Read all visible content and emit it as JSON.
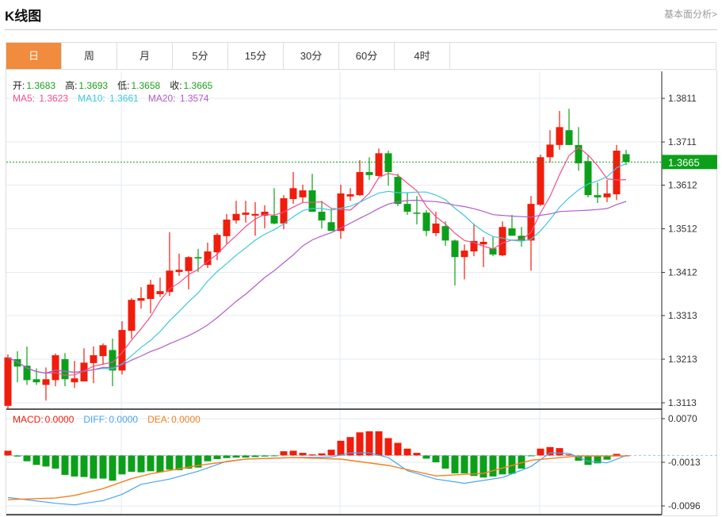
{
  "header": {
    "title": "K线图",
    "link": "基本面分析>"
  },
  "tabs": [
    {
      "label": "日",
      "active": true
    },
    {
      "label": "周"
    },
    {
      "label": "月"
    },
    {
      "label": "5分"
    },
    {
      "label": "15分"
    },
    {
      "label": "30分"
    },
    {
      "label": "60分"
    },
    {
      "label": "4时"
    }
  ],
  "ohlc_legend": {
    "open_label": "开:",
    "open": "1.3683",
    "high_label": "高:",
    "high": "1.3693",
    "low_label": "低:",
    "low": "1.3658",
    "close_label": "收:",
    "close": "1.3665"
  },
  "ma_legend": {
    "ma5_label": "MA5:",
    "ma5": "1.3623",
    "ma10_label": "MA10:",
    "ma10": "1.3661",
    "ma20_label": "MA20:",
    "ma20": "1.3574"
  },
  "macd_legend": {
    "macd_label": "MACD:",
    "macd": "0.0000",
    "diff_label": "DIFF:",
    "diff": "0.0000",
    "dea_label": "DEA:",
    "dea": "0.0000"
  },
  "colors": {
    "up": "#f01d0c",
    "down": "#0ca01a",
    "ma5": "#f0508a",
    "ma10": "#3cc8dc",
    "ma20": "#b45ac8",
    "diff": "#4aa3f0",
    "dea": "#f5801e",
    "text_green": "#1aa31a",
    "active_tab": "#f18b3d"
  },
  "chart_data": {
    "type": "candlestick",
    "price_axis": {
      "ticks": [
        "1.3811",
        "1.3711",
        "1.3612",
        "1.3512",
        "1.3412",
        "1.3313",
        "1.3213",
        "1.3113"
      ],
      "range": [
        1.309,
        1.3875
      ]
    },
    "current_price": "1.3665",
    "candles": [
      [
        1.3106,
        1.3224,
        1.3097,
        1.3217
      ],
      [
        1.3213,
        1.3231,
        1.316,
        1.3196
      ],
      [
        1.3198,
        1.3242,
        1.3154,
        1.3165
      ],
      [
        1.3167,
        1.3192,
        1.3154,
        1.316
      ],
      [
        1.3154,
        1.3194,
        1.3118,
        1.3167
      ],
      [
        1.3165,
        1.3226,
        1.3151,
        1.3222
      ],
      [
        1.3213,
        1.3227,
        1.3151,
        1.3167
      ],
      [
        1.316,
        1.3209,
        1.3147,
        1.3169
      ],
      [
        1.3162,
        1.3238,
        1.3162,
        1.3205
      ],
      [
        1.3204,
        1.3242,
        1.3158,
        1.3222
      ],
      [
        1.322,
        1.3249,
        1.32,
        1.3245
      ],
      [
        1.3234,
        1.326,
        1.3151,
        1.3187
      ],
      [
        1.3187,
        1.33,
        1.3178,
        1.328
      ],
      [
        1.3278,
        1.3353,
        1.326,
        1.3349
      ],
      [
        1.3347,
        1.3378,
        1.3329,
        1.3353
      ],
      [
        1.3351,
        1.3395,
        1.3318,
        1.3384
      ],
      [
        1.3362,
        1.34,
        1.3356,
        1.3369
      ],
      [
        1.3367,
        1.3504,
        1.3358,
        1.3416
      ],
      [
        1.3413,
        1.3455,
        1.3404,
        1.3418
      ],
      [
        1.3415,
        1.3449,
        1.3373,
        1.3447
      ],
      [
        1.3447,
        1.3466,
        1.3413,
        1.3444
      ],
      [
        1.3429,
        1.348,
        1.3422,
        1.346
      ],
      [
        1.3458,
        1.3502,
        1.344,
        1.3498
      ],
      [
        1.3495,
        1.3546,
        1.3476,
        1.3533
      ],
      [
        1.3531,
        1.3576,
        1.3524,
        1.3546
      ],
      [
        1.3544,
        1.3576,
        1.3526,
        1.3549
      ],
      [
        1.3542,
        1.3573,
        1.3496,
        1.3546
      ],
      [
        1.3542,
        1.3566,
        1.3513,
        1.3551
      ],
      [
        1.3542,
        1.3605,
        1.3522,
        1.3524
      ],
      [
        1.3524,
        1.3589,
        1.3511,
        1.3582
      ],
      [
        1.358,
        1.3642,
        1.3569,
        1.3605
      ],
      [
        1.3584,
        1.3613,
        1.3573,
        1.36
      ],
      [
        1.36,
        1.3638,
        1.3551,
        1.3551
      ],
      [
        1.3551,
        1.3576,
        1.3513,
        1.3531
      ],
      [
        1.3527,
        1.3558,
        1.3507,
        1.3507
      ],
      [
        1.3507,
        1.3613,
        1.3489,
        1.3593
      ],
      [
        1.3586,
        1.3605,
        1.3576,
        1.3591
      ],
      [
        1.3589,
        1.3669,
        1.3587,
        1.3642
      ],
      [
        1.3642,
        1.3676,
        1.3624,
        1.3635
      ],
      [
        1.3633,
        1.3696,
        1.3631,
        1.3685
      ],
      [
        1.3685,
        1.3691,
        1.3611,
        1.3642
      ],
      [
        1.3631,
        1.3638,
        1.3564,
        1.3569
      ],
      [
        1.3569,
        1.3594,
        1.3544,
        1.3551
      ],
      [
        1.3549,
        1.3587,
        1.3522,
        1.3547
      ],
      [
        1.3549,
        1.3555,
        1.3495,
        1.3507
      ],
      [
        1.3502,
        1.3551,
        1.3495,
        1.3524
      ],
      [
        1.3518,
        1.3529,
        1.3473,
        1.3485
      ],
      [
        1.3485,
        1.3487,
        1.3382,
        1.3447
      ],
      [
        1.3447,
        1.3476,
        1.3396,
        1.3462
      ],
      [
        1.346,
        1.3524,
        1.3449,
        1.3484
      ],
      [
        1.3476,
        1.3493,
        1.3424,
        1.3482
      ],
      [
        1.3467,
        1.3493,
        1.3449,
        1.3453
      ],
      [
        1.3451,
        1.3529,
        1.3449,
        1.3516
      ],
      [
        1.3513,
        1.3544,
        1.3496,
        1.3496
      ],
      [
        1.3496,
        1.3516,
        1.3471,
        1.3485
      ],
      [
        1.3485,
        1.3587,
        1.3416,
        1.3569
      ],
      [
        1.3567,
        1.3682,
        1.3564,
        1.3676
      ],
      [
        1.3676,
        1.3738,
        1.3664,
        1.3705
      ],
      [
        1.3704,
        1.3782,
        1.3693,
        1.3745
      ],
      [
        1.3738,
        1.3787,
        1.3704,
        1.3704
      ],
      [
        1.3704,
        1.3745,
        1.3645,
        1.3662
      ],
      [
        1.3667,
        1.3682,
        1.3584,
        1.3589
      ],
      [
        1.3589,
        1.3618,
        1.3571,
        1.3584
      ],
      [
        1.3584,
        1.3624,
        1.3573,
        1.3593
      ],
      [
        1.3591,
        1.3704,
        1.3578,
        1.3691
      ],
      [
        1.3683,
        1.3693,
        1.3658,
        1.3665
      ]
    ],
    "ma_periods": [
      5,
      10,
      20
    ],
    "macd_axis": {
      "ticks": [
        "0.0070",
        "-0.0013",
        "-0.0096"
      ],
      "range": [
        -0.0108,
        0.0082
      ]
    },
    "macd_hist": [
      0.0009,
      -0.0002,
      -0.0011,
      -0.0018,
      -0.0021,
      -0.0025,
      -0.0037,
      -0.004,
      -0.0041,
      -0.0044,
      -0.0044,
      -0.0048,
      -0.0036,
      -0.0031,
      -0.0032,
      -0.003,
      -0.0032,
      -0.0027,
      -0.0028,
      -0.0025,
      -0.0023,
      -0.0011,
      -0.0007,
      -0.0005,
      -0.0004,
      -0.0004,
      -0.0003,
      -0.0002,
      -0.0001,
      0.0008,
      0.0009,
      0.0005,
      0.0002,
      0.0004,
      0.0011,
      0.0028,
      0.0035,
      0.0044,
      0.0046,
      0.0046,
      0.0033,
      0.0024,
      0.0013,
      0.0005,
      -0.0006,
      -0.0013,
      -0.0025,
      -0.0034,
      -0.0034,
      -0.0039,
      -0.0042,
      -0.004,
      -0.0036,
      -0.0035,
      -0.0025,
      -0.0001,
      0.0013,
      0.0016,
      0.0014,
      0.0002,
      -0.001,
      -0.0018,
      -0.0015,
      -0.0008,
      0.0003,
      0.0
    ],
    "diff": [
      [
        0,
        -0.008
      ],
      [
        5,
        -0.0091
      ],
      [
        7,
        -0.0094
      ],
      [
        10,
        -0.0086
      ],
      [
        12,
        -0.0074
      ],
      [
        14,
        -0.0055
      ],
      [
        17,
        -0.0045
      ],
      [
        20,
        -0.003
      ],
      [
        23,
        -0.0011
      ],
      [
        25,
        -0.0007
      ],
      [
        30,
        -0.0004
      ],
      [
        34,
        -0.0003
      ],
      [
        36,
        0.0005
      ],
      [
        38,
        0.0005
      ],
      [
        40,
        -0.0004
      ],
      [
        42,
        -0.0029
      ],
      [
        45,
        -0.0045
      ],
      [
        48,
        -0.0053
      ],
      [
        52,
        -0.0042
      ],
      [
        55,
        -0.0021
      ],
      [
        57,
        0.0005
      ],
      [
        59,
        0.0004
      ],
      [
        61,
        -0.0011
      ],
      [
        63,
        -0.0014
      ],
      [
        65,
        0.0
      ]
    ],
    "dea": [
      [
        0,
        -0.0084
      ],
      [
        5,
        -0.0081
      ],
      [
        7,
        -0.0076
      ],
      [
        10,
        -0.0063
      ],
      [
        13,
        -0.0044
      ],
      [
        15,
        -0.0035
      ],
      [
        20,
        -0.0019
      ],
      [
        25,
        -0.0007
      ],
      [
        30,
        -0.0004
      ],
      [
        35,
        -0.0007
      ],
      [
        40,
        -0.0019
      ],
      [
        45,
        -0.0039
      ],
      [
        50,
        -0.0034
      ],
      [
        55,
        -0.0009
      ],
      [
        60,
        -0.0001
      ],
      [
        65,
        -0.0001
      ]
    ]
  }
}
